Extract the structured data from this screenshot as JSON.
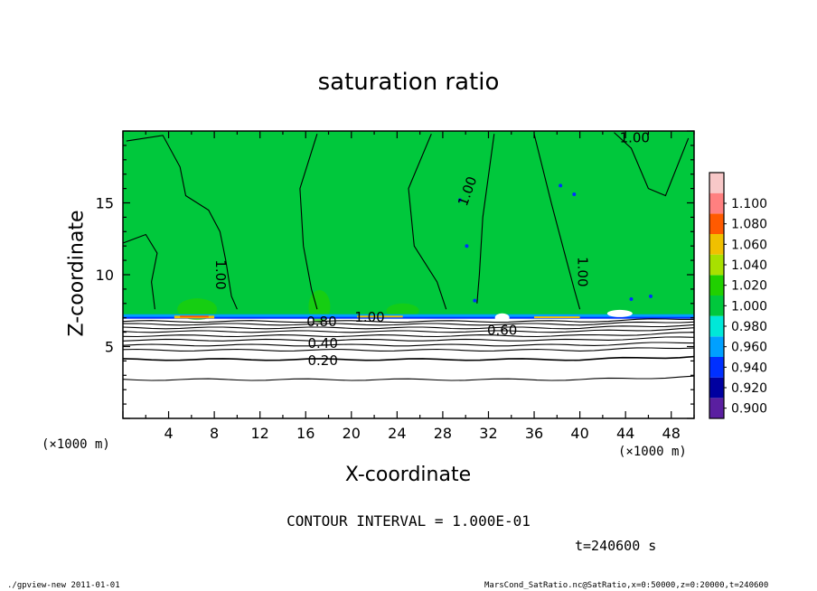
{
  "chart_data": {
    "type": "heatmap",
    "title": "saturation ratio",
    "xlabel": "X-coordinate",
    "ylabel": "Z-coordinate",
    "x_unit": "(×1000 m)",
    "z_unit": "(×1000 m)",
    "xlim": [
      0,
      50
    ],
    "ylim": [
      0,
      20
    ],
    "x_ticks": [
      4,
      8,
      12,
      16,
      20,
      24,
      28,
      32,
      36,
      40,
      44,
      48
    ],
    "y_ticks": [
      5,
      10,
      15
    ],
    "colorbar": {
      "levels": [
        0.9,
        0.92,
        0.94,
        0.96,
        0.98,
        1.0,
        1.02,
        1.04,
        1.06,
        1.08,
        1.1
      ],
      "labels": [
        "0.900",
        "0.920",
        "0.940",
        "0.960",
        "0.980",
        "1.000",
        "1.020",
        "1.040",
        "1.060",
        "1.080",
        "1.100"
      ],
      "colors": [
        "#5a1fa0",
        "#0000a0",
        "#0030ff",
        "#00a0ff",
        "#00e8d8",
        "#00c83c",
        "#20d000",
        "#a8e000",
        "#f0c000",
        "#ff5a00",
        "#ff8080",
        "#f8c8c8"
      ]
    },
    "contour_labels": [
      {
        "text": "1.00",
        "x": 44.8,
        "z": 19.5
      },
      {
        "text": "1.00",
        "x": 8.5,
        "z": 10.0,
        "rotate": 90
      },
      {
        "text": "1.00",
        "x": 30.2,
        "z": 15.8,
        "rotate": -70
      },
      {
        "text": "1.00",
        "x": 40.2,
        "z": 10.2,
        "rotate": 90
      },
      {
        "text": "1.00",
        "x": 21.6,
        "z": 7.0
      },
      {
        "text": "0.80",
        "x": 17.4,
        "z": 6.7
      },
      {
        "text": "0.60",
        "x": 33.2,
        "z": 6.1
      },
      {
        "text": "0.40",
        "x": 17.5,
        "z": 5.2
      },
      {
        "text": "0.20",
        "x": 17.5,
        "z": 4.0
      }
    ],
    "grid": false,
    "legend": "right"
  },
  "contour_interval": "CONTOUR INTERVAL = 1.000E-01",
  "time_label": "t=240600 s",
  "footer_left": "./gpview-new   2011-01-01",
  "footer_right": "MarsCond_SatRatio.nc@SatRatio,x=0:50000,z=0:20000,t=240600"
}
